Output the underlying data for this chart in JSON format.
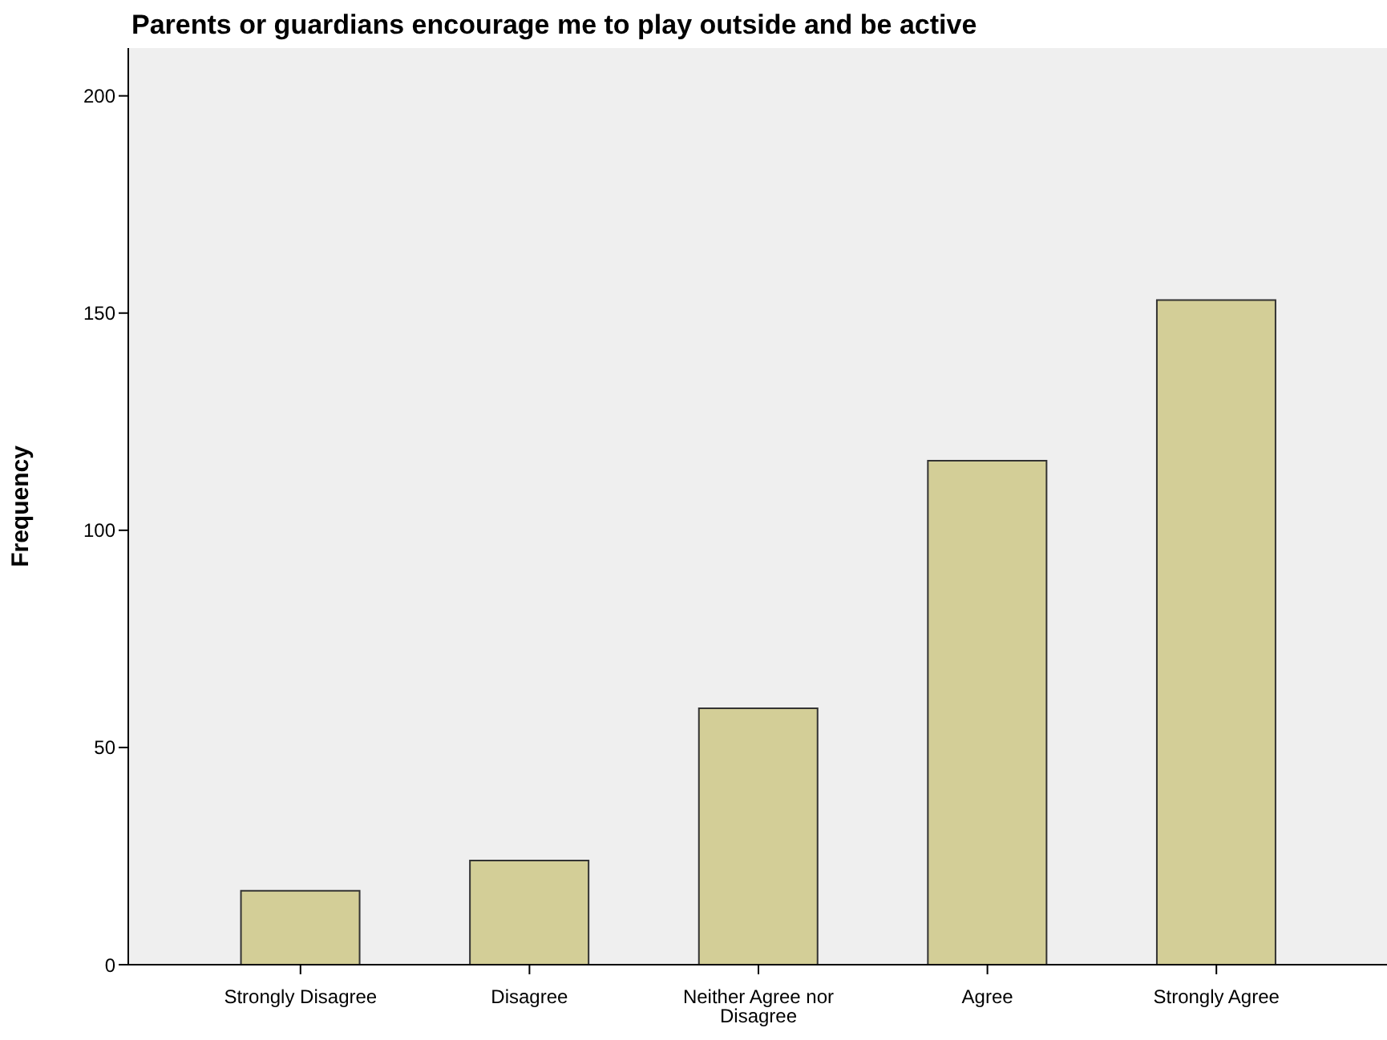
{
  "chart_data": {
    "type": "bar",
    "title": "Parents or guardians encourage me to play outside and be active",
    "ylabel": "Frequency",
    "categories": [
      "Strongly Disagree",
      "Disagree",
      "Neither Agree nor Disagree",
      "Agree",
      "Strongly Agree"
    ],
    "values": [
      17,
      24,
      59,
      116,
      153
    ],
    "color": "#d3ce97",
    "ylim": [
      0,
      211
    ],
    "yticks": [
      0,
      50,
      100,
      150,
      200
    ],
    "grid": false,
    "legend": false
  }
}
